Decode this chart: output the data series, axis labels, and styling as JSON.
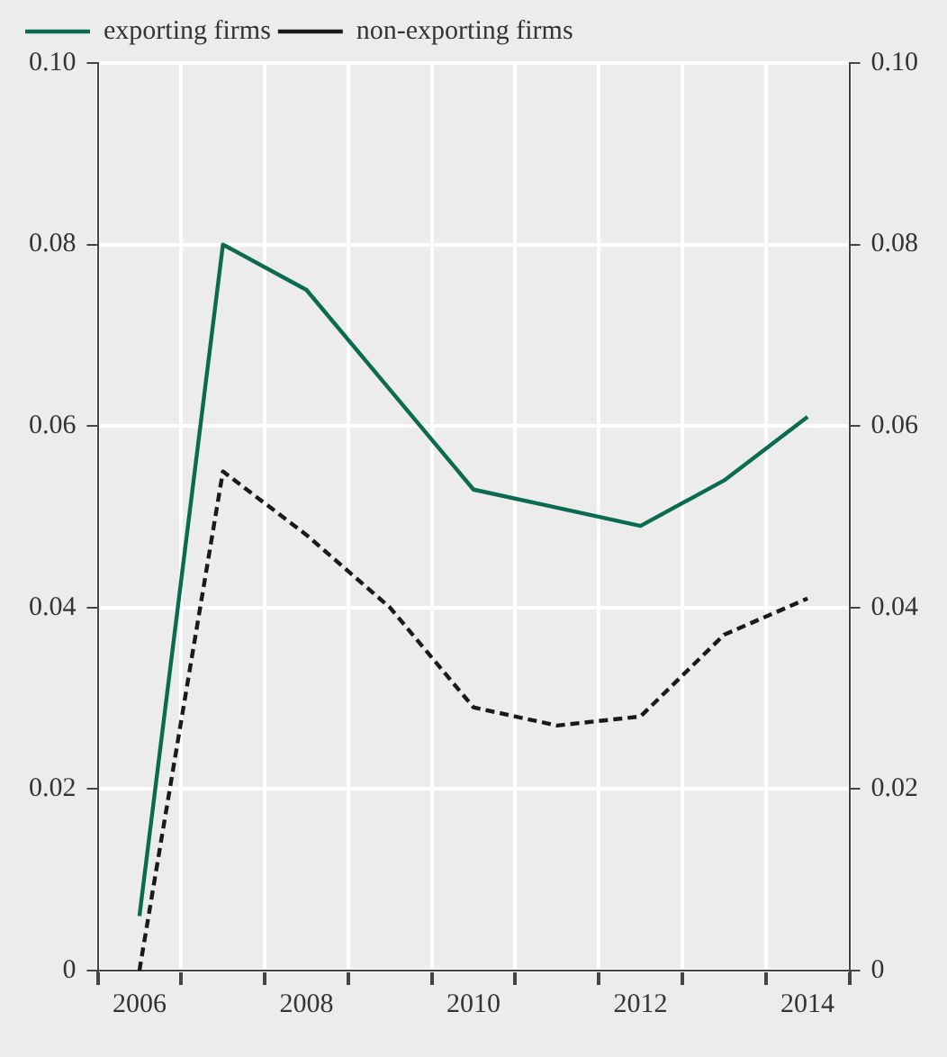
{
  "chart_data": {
    "type": "line",
    "categories": [
      "2006",
      null,
      "2008",
      null,
      "2010",
      null,
      "2012",
      null,
      "2014"
    ],
    "series": [
      {
        "name": "exporting firms",
        "color": "#0b6b50",
        "line_style": "solid",
        "values": [
          0.006,
          0.08,
          0.075,
          0.064,
          0.053,
          0.051,
          0.049,
          0.054,
          0.061
        ]
      },
      {
        "name": "non-exporting firms",
        "color": "#1a1a1a",
        "line_style": "dashed",
        "values": [
          0.0,
          0.055,
          0.048,
          0.04,
          0.029,
          0.027,
          0.028,
          0.037,
          0.041
        ]
      }
    ],
    "ylim": [
      0,
      0.1
    ],
    "yticks": [
      0,
      0.02,
      0.04,
      0.06,
      0.08,
      {
        "value": 0.1,
        "label": "0.10"
      }
    ],
    "y2lim": [
      0,
      0.1
    ],
    "y2ticks": [
      0,
      0.02,
      0.04,
      0.06,
      0.08,
      {
        "value": 0.1,
        "label": "0.10"
      }
    ],
    "grid": true,
    "legend": "top left",
    "marker": "none"
  }
}
